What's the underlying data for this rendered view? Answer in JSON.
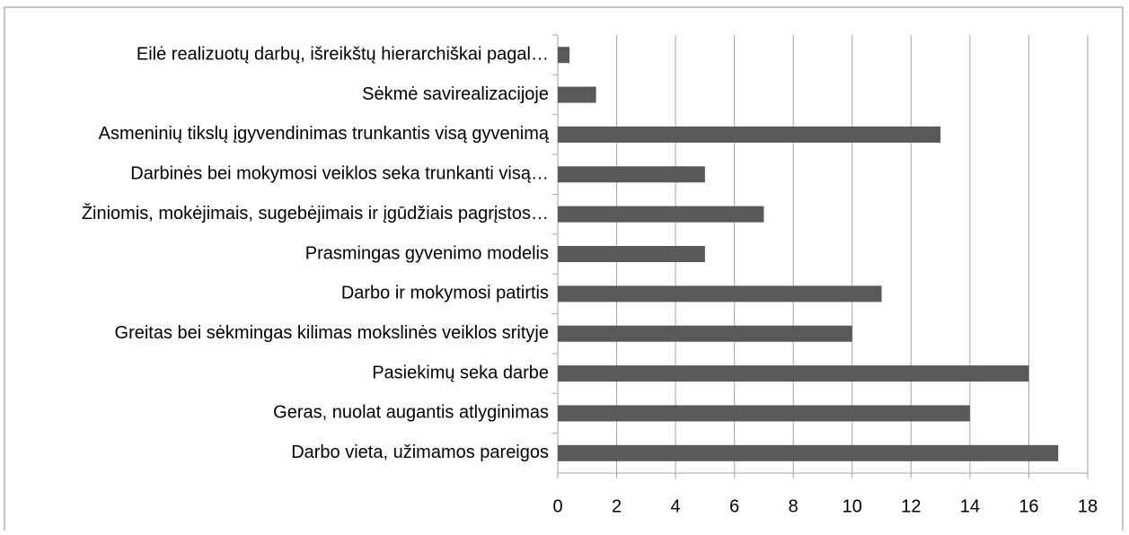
{
  "chart_data": {
    "type": "barh",
    "categories": [
      "Eilė realizuotų darbų, išreikštų hierarchiškai pagal…",
      "Sėkmė savirealizacijoje",
      "Asmeninių tikslų įgyvendinimas trunkantis visą gyvenimą",
      "Darbinės bei mokymosi veiklos seka trunkanti visą…",
      "Žiniomis, mokėjimais, sugebėjimais ir įgūdžiais pagrįstos…",
      "Prasmingas gyvenimo modelis",
      "Darbo ir mokymosi patirtis",
      "Greitas bei sėkmingas kilimas mokslinės veiklos srityje",
      "Pasiekimų seka darbe",
      "Geras, nuolat augantis atlyginimas",
      "Darbo vieta, užimamos pareigos"
    ],
    "values": [
      0.4,
      1.3,
      13,
      5,
      7,
      5,
      11,
      10,
      16,
      14,
      17
    ],
    "color": "#595959",
    "xlim": [
      0,
      18
    ],
    "xticks": [
      0,
      2,
      4,
      6,
      8,
      10,
      12,
      14,
      16,
      18
    ],
    "grid": true
  }
}
